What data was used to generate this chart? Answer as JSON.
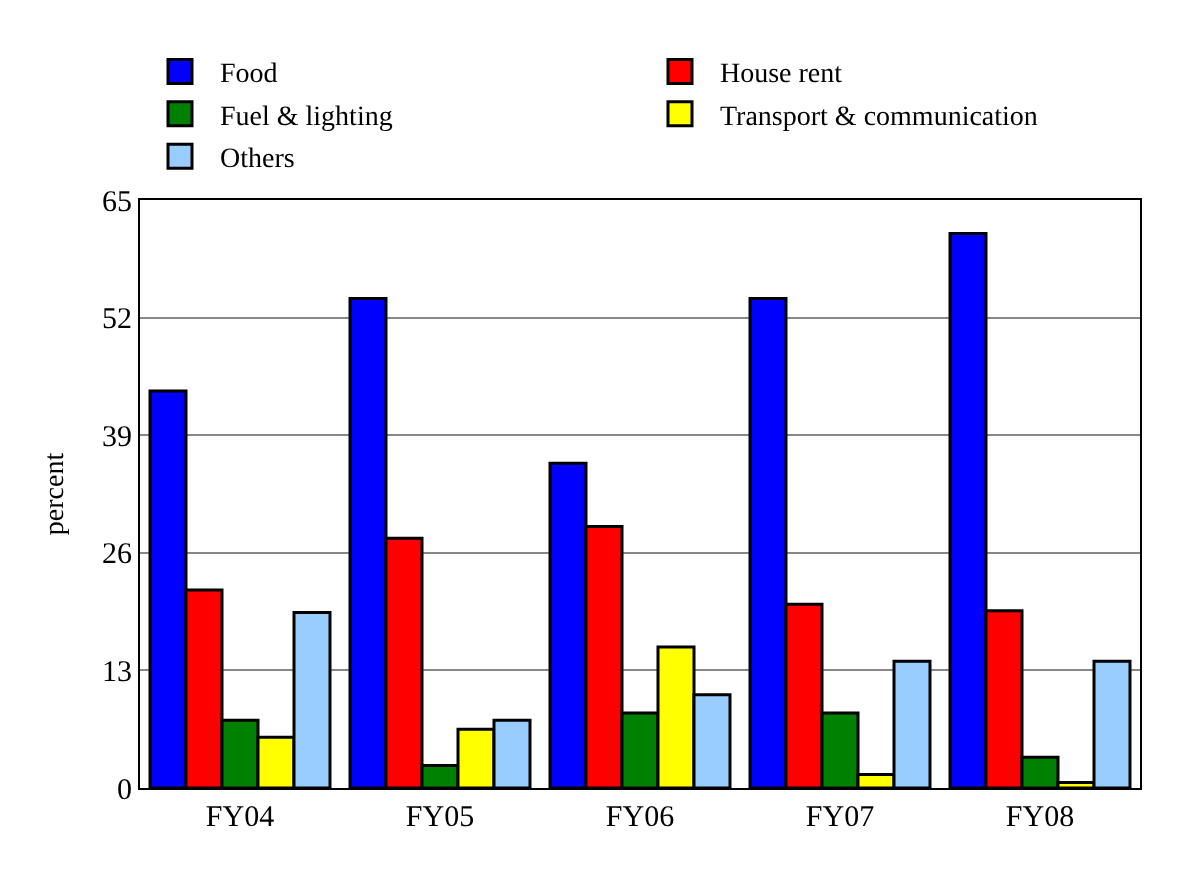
{
  "chart_data": {
    "type": "bar",
    "ylabel": "percent",
    "categories": [
      "FY04",
      "FY05",
      "FY06",
      "FY07",
      "FY08"
    ],
    "series": [
      {
        "name": "Food",
        "color": "#0000ff",
        "values": [
          43.9,
          54.1,
          35.9,
          54.1,
          61.3
        ]
      },
      {
        "name": "House rent",
        "color": "#ff0000",
        "values": [
          21.9,
          27.6,
          28.9,
          20.3,
          19.6
        ]
      },
      {
        "name": "Fuel & lighting",
        "color": "#008000",
        "values": [
          7.5,
          2.5,
          8.3,
          8.3,
          3.4
        ]
      },
      {
        "name": "Transport & communication",
        "color": "#ffff00",
        "values": [
          5.6,
          6.5,
          15.6,
          1.5,
          0.6
        ]
      },
      {
        "name": "Others",
        "color": "#99ccff",
        "values": [
          19.4,
          7.5,
          10.3,
          14.0,
          14.0
        ]
      }
    ],
    "ylim": [
      0,
      65
    ],
    "yticks": [
      0,
      13,
      26,
      39,
      52,
      65
    ],
    "grid": "y",
    "legend": "top"
  }
}
